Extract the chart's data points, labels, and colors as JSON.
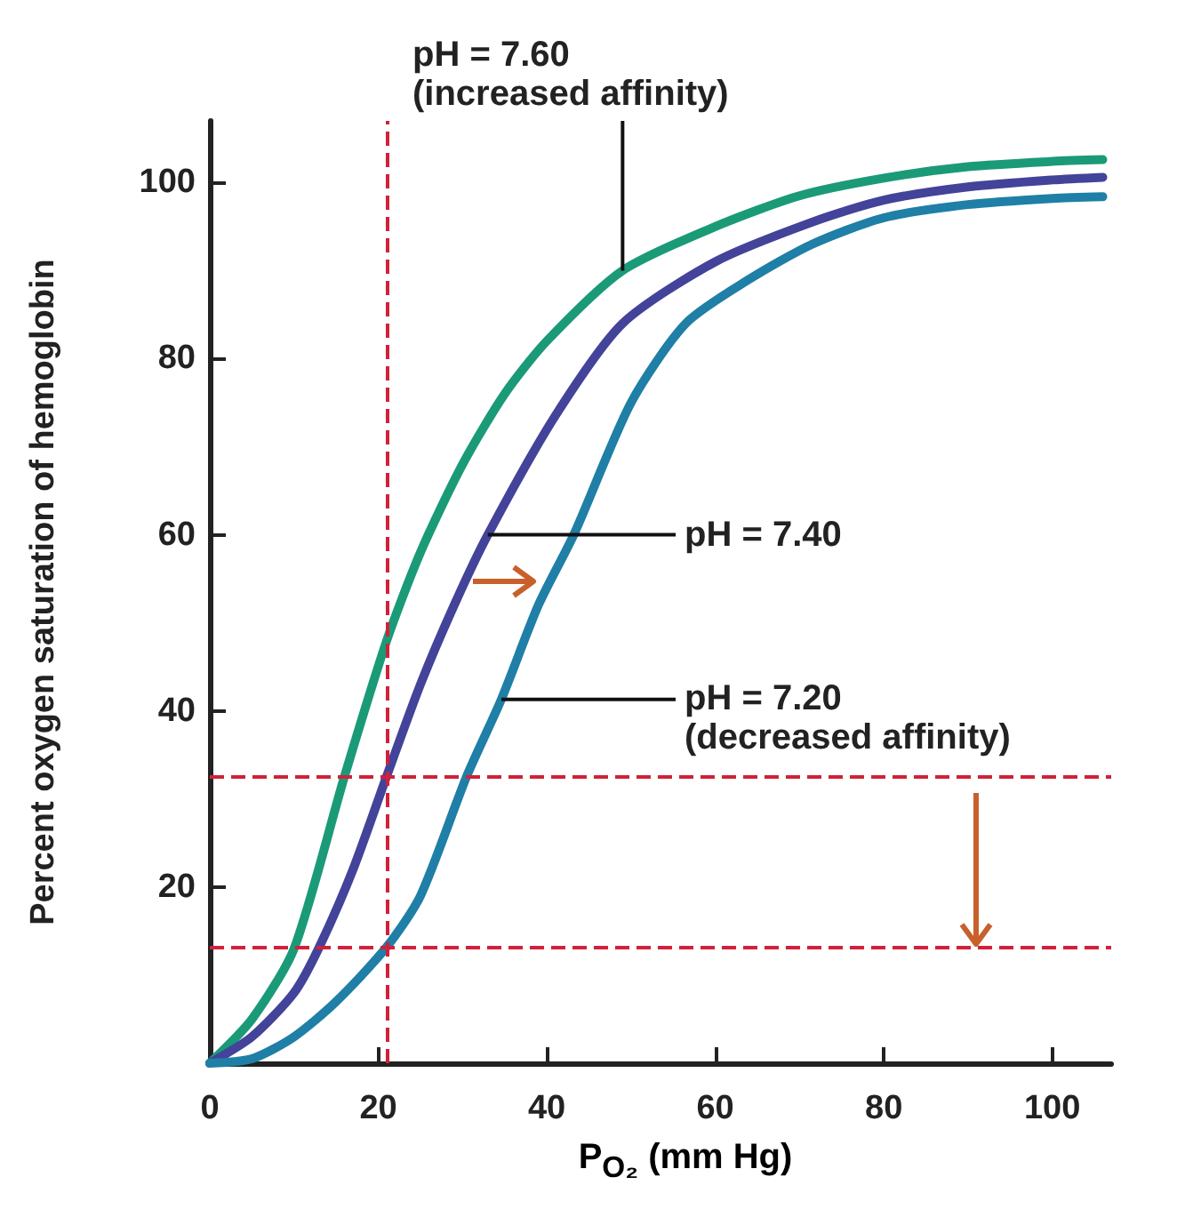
{
  "chart_data": {
    "type": "line",
    "xlabel": "P$_{O₂}$ (mm Hg)",
    "ylabel": "Percent oxygen saturation of hemoglobin",
    "xlim": [
      0,
      107
    ],
    "xticks": [
      0,
      20,
      40,
      60,
      80,
      100
    ],
    "ylim": [
      0,
      107
    ],
    "yticks": [
      {
        "value": 0,
        "label": null
      },
      20,
      40,
      60,
      80,
      100
    ],
    "grid": false,
    "marker": "none",
    "line_style": "solid",
    "series": [
      {
        "color": "#1b9a78",
        "x": [
          0,
          5,
          10,
          16,
          21,
          25,
          30,
          35,
          40,
          49,
          60,
          70,
          80,
          90,
          100,
          106
        ],
        "values": [
          0,
          5,
          13,
          32.6,
          48,
          58,
          68,
          76,
          82,
          90,
          95,
          98.5,
          100.5,
          101.8,
          102.4,
          102.6
        ]
      },
      {
        "color": "#43439a",
        "x": [
          0,
          5,
          10,
          13,
          17,
          21,
          25,
          29,
          33,
          41,
          49,
          60,
          71.5,
          80,
          90,
          100,
          106
        ],
        "values": [
          0,
          3,
          8,
          13.2,
          22,
          32.6,
          43,
          52,
          60,
          73.5,
          84,
          91,
          95.5,
          98,
          99.5,
          100.3,
          100.6
        ]
      },
      {
        "color": "#1f7fa6",
        "x": [
          0,
          5,
          10,
          15,
          21,
          25,
          30.5,
          34.6,
          39,
          43.2,
          50,
          56.5,
          64,
          71.5,
          80,
          90,
          100,
          106
        ],
        "values": [
          0,
          0.5,
          3,
          7,
          13.2,
          19,
          32.6,
          41.3,
          52,
          60,
          75,
          84,
          89,
          93,
          96,
          97.5,
          98.2,
          98.4
        ]
      }
    ],
    "ref_lines": [
      {
        "axis": "x",
        "value": 21,
        "color": "#d0213a",
        "line_style": "dashed"
      },
      {
        "axis": "y",
        "value": 32.6,
        "color": "#d0213a",
        "line_style": "dashed"
      },
      {
        "axis": "y",
        "value": 13.2,
        "color": "#d0213a",
        "line_style": "dashed"
      }
    ],
    "annotations": [
      {
        "text": "pH = 7.60 (increased affinity)",
        "x": 49,
        "y": 90
      },
      {
        "text": "pH = 7.40",
        "x": 33,
        "y": 60
      },
      {
        "text": "pH = 7.20 (decreased affinity)",
        "x": 34.6,
        "y": 41.3
      }
    ]
  }
}
